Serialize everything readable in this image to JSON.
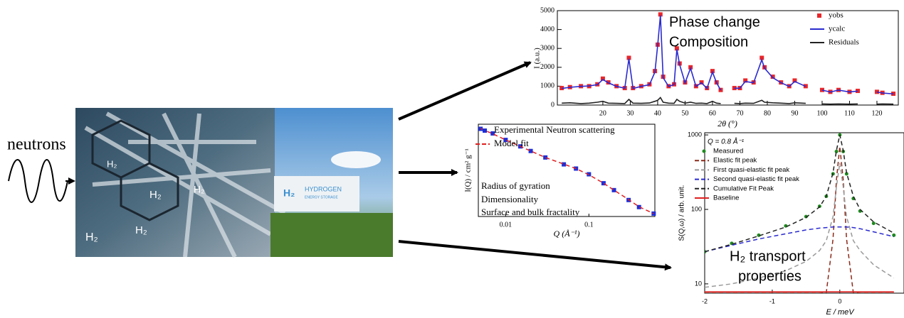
{
  "diagram": {
    "label": "neutrons",
    "photo_labels": [
      "H₂",
      "H₂",
      "H₂",
      "H₂",
      "H₂",
      "H₂",
      "HYDROGEN",
      "ENERGY STORAGE"
    ]
  },
  "chart_data": [
    {
      "type": "line",
      "x_label": "2θ (°)",
      "y_label": "I (a.u.)",
      "annotations": [
        "Phase change",
        "Composition"
      ],
      "x": [
        5,
        8,
        12,
        15,
        18,
        20,
        22,
        25,
        28,
        29.5,
        31,
        34,
        37,
        39,
        40,
        41,
        42,
        44,
        46,
        47,
        48,
        50,
        52,
        54,
        56,
        58,
        60,
        61.5,
        63,
        65,
        68,
        70,
        72,
        75,
        78,
        79,
        82,
        85,
        88,
        90,
        94,
        98,
        100,
        103,
        106,
        110,
        113,
        116,
        120,
        122,
        126
      ],
      "series": [
        {
          "name": "yobs",
          "color": "#e8262a",
          "marker": "square",
          "values": [
            900,
            950,
            1000,
            1000,
            1100,
            1400,
            1200,
            1000,
            900,
            2500,
            900,
            1000,
            1100,
            1800,
            3200,
            4800,
            1500,
            1000,
            1100,
            3000,
            2200,
            1200,
            2000,
            1000,
            1200,
            900,
            1800,
            1200,
            800,
            null,
            900,
            900,
            1300,
            1200,
            2500,
            2000,
            1500,
            1200,
            1000,
            1300,
            1000,
            null,
            800,
            700,
            800,
            700,
            750,
            null,
            700,
            650,
            600
          ]
        },
        {
          "name": "ycalc",
          "color": "#2a2ad0",
          "values": [
            880,
            940,
            990,
            1010,
            1080,
            1350,
            1180,
            990,
            890,
            2450,
            880,
            990,
            1080,
            1750,
            3150,
            4750,
            1450,
            990,
            1080,
            2950,
            2150,
            1180,
            1950,
            990,
            1180,
            880,
            1750,
            1180,
            790,
            null,
            890,
            890,
            1250,
            1180,
            2400,
            1950,
            1450,
            1180,
            990,
            1250,
            990,
            null,
            790,
            690,
            790,
            690,
            740,
            null,
            690,
            640,
            590
          ]
        },
        {
          "name": "Residuals",
          "color": "#222222",
          "values": [
            100,
            120,
            80,
            100,
            150,
            200,
            100,
            90,
            80,
            300,
            100,
            90,
            110,
            200,
            250,
            400,
            150,
            100,
            90,
            300,
            200,
            100,
            150,
            90,
            100,
            80,
            200,
            100,
            80,
            null,
            90,
            80,
            100,
            90,
            250,
            150,
            120,
            100,
            80,
            120,
            90,
            null,
            60,
            50,
            60,
            50,
            60,
            null,
            50,
            60,
            50
          ]
        }
      ],
      "xlim": [
        3.4,
        127.8
      ],
      "xticks": [
        20,
        30,
        40,
        50,
        60,
        70,
        80,
        90,
        100,
        110,
        120
      ],
      "ylim": [
        0,
        5000
      ],
      "yticks": [
        0,
        1000,
        2000,
        3000,
        4000,
        5000
      ]
    },
    {
      "type": "line",
      "x_label": "Q (Å⁻¹)",
      "y_label": "I(Q) / cm² g⁻¹",
      "annotations": [
        "Radius of gyration",
        "Dimensionality",
        "Surface and bulk fractality"
      ],
      "x_log": true,
      "y_log": true,
      "x": [
        0.005,
        0.007,
        0.01,
        0.015,
        0.02,
        0.03,
        0.05,
        0.07,
        0.1,
        0.15,
        0.2,
        0.3,
        0.4,
        0.6
      ],
      "series": [
        {
          "name": "Experimental Neutron scattering",
          "color": "#1c2fd8",
          "marker": "square",
          "values": [
            60,
            45,
            30,
            20,
            15,
            10,
            6.5,
            5,
            3.5,
            2,
            1.3,
            0.7,
            0.45,
            0.3
          ]
        },
        {
          "name": "Model fit",
          "color": "#e02020",
          "dash": true,
          "values": [
            61,
            44,
            30,
            20,
            15,
            10,
            6.6,
            5,
            3.4,
            2,
            1.3,
            0.72,
            0.46,
            0.3
          ]
        }
      ],
      "xlim": [
        0.0047,
        0.62
      ],
      "xticks": [
        0.01,
        0.1
      ],
      "ylim": [
        0.25,
        80
      ]
    },
    {
      "type": "line",
      "title": "Q = 0.8 Å⁻¹",
      "x_label": "E / meV",
      "y_label": "S(Q,ω) / arb. unit.",
      "annotations": [
        "H₂ transport",
        "properties"
      ],
      "y_log": true,
      "x": [
        -2,
        -1.6,
        -1.2,
        -0.8,
        -0.5,
        -0.3,
        -0.2,
        -0.1,
        -0.05,
        0,
        0.05,
        0.1,
        0.2,
        0.3,
        0.5,
        0.8
      ],
      "series": [
        {
          "name": "Measured",
          "color": "#1f8a1f",
          "marker": "dot",
          "values": [
            27,
            35,
            45,
            60,
            80,
            110,
            150,
            300,
            600,
            1000,
            600,
            300,
            140,
            95,
            65,
            45
          ]
        },
        {
          "name": "Elastic fit peak",
          "color": "#8b2a1a",
          "dash": true,
          "values": [
            7.5,
            7.5,
            7.5,
            7.5,
            7.5,
            7.5,
            7.6,
            40,
            250,
            700,
            250,
            40,
            7.6,
            7.5,
            7.5,
            7.5
          ]
        },
        {
          "name": "First quasi-elastic fit peak",
          "color": "#9a9a9a",
          "dash": true,
          "values": [
            9,
            10,
            12,
            15,
            20,
            28,
            38,
            80,
            200,
            420,
            200,
            80,
            38,
            28,
            18,
            12
          ]
        },
        {
          "name": "Second quasi-elastic fit peak",
          "color": "#2a2ad0",
          "dash": true,
          "values": [
            27,
            33,
            40,
            47,
            53,
            56,
            57,
            58,
            58,
            58,
            58,
            58,
            57,
            55,
            50,
            43
          ]
        },
        {
          "name": "Cumulative Fit Peak",
          "color": "#222222",
          "dash": true,
          "values": [
            27,
            34,
            44,
            58,
            78,
            108,
            150,
            310,
            620,
            1000,
            620,
            310,
            150,
            100,
            68,
            48
          ]
        },
        {
          "name": "Baseline",
          "color": "#e02020",
          "values": [
            7.8,
            7.8,
            7.8,
            7.8,
            7.8,
            7.8,
            7.8,
            7.8,
            7.8,
            7.8,
            7.8,
            7.8,
            7.8,
            7.8,
            7.8,
            7.8
          ]
        }
      ],
      "xlim": [
        -2,
        0.95
      ],
      "xticks": [
        -2,
        -1,
        0
      ],
      "ylim": [
        7.5,
        1070
      ],
      "yticks": [
        10,
        100,
        1000
      ]
    }
  ]
}
